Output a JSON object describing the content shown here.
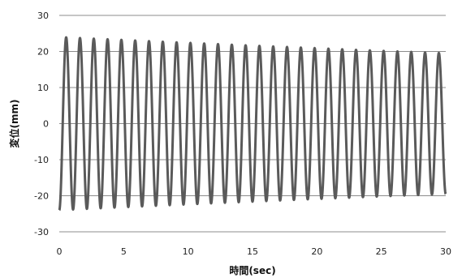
{
  "chart_data": {
    "type": "line",
    "title": "",
    "xlabel": "時間(sec)",
    "ylabel": "変位(mm)",
    "xlim": [
      0,
      30
    ],
    "ylim": [
      -30,
      30
    ],
    "x_ticks": [
      0,
      5,
      10,
      15,
      20,
      25,
      30
    ],
    "x_tick_labels": [
      "0",
      "5",
      "10",
      "15",
      "20",
      "25",
      "30"
    ],
    "y_ticks": [
      -30,
      -20,
      -10,
      0,
      10,
      20,
      30
    ],
    "y_tick_labels": [
      "-30",
      "-20",
      "-10",
      "0",
      "10",
      "20",
      "30"
    ],
    "grid": {
      "horizontal": true,
      "vertical": false
    },
    "legend": "none",
    "series": [
      {
        "color": "#5a5a5a",
        "description_shape": "damped sinusoid",
        "x": [
          0,
          30
        ],
        "start_value": -25,
        "peak_amplitude_start": 24,
        "peak_amplitude_end": 19.5,
        "cycles": 28,
        "end_value": 19
      }
    ]
  }
}
